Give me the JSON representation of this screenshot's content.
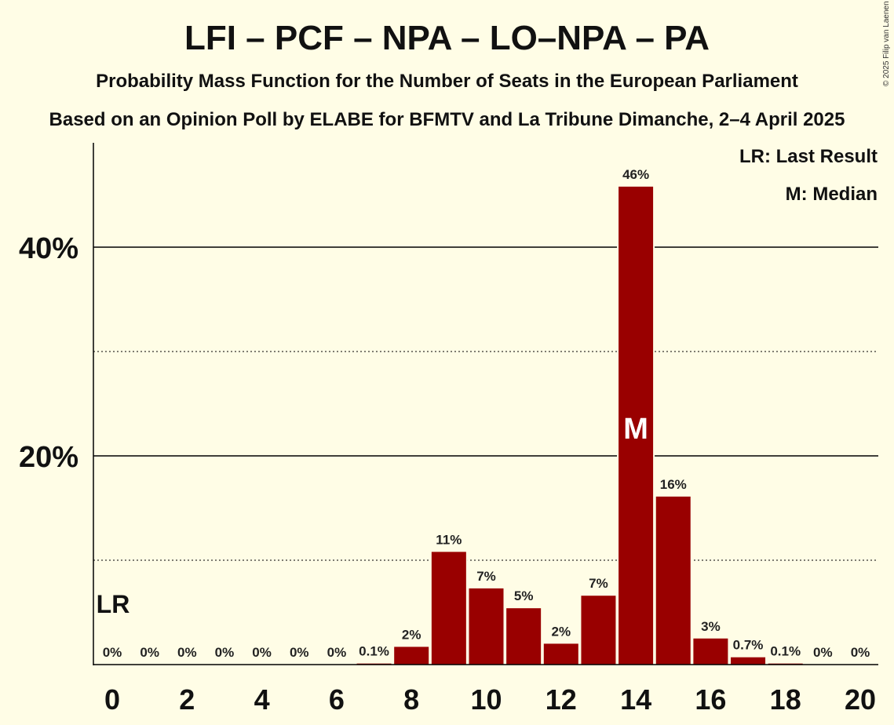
{
  "title": "LFI – PCF – NPA – LO–NPA – PA",
  "subtitle": "Probability Mass Function for the Number of Seats in the European Parliament",
  "subtitle2": "Based on an Opinion Poll by ELABE for BFMTV and La Tribune Dimanche, 2–4 April 2025",
  "copyright": "© 2025 Filip van Laenen",
  "legend": {
    "last_result": "LR: Last Result",
    "median": "M: Median"
  },
  "chart_data": {
    "type": "bar",
    "categories": [
      0,
      1,
      2,
      3,
      4,
      5,
      6,
      7,
      8,
      9,
      10,
      11,
      12,
      13,
      14,
      15,
      16,
      17,
      18,
      19,
      20
    ],
    "values": [
      0,
      0,
      0,
      0,
      0,
      0,
      0,
      0.1,
      1.7,
      10.8,
      7.3,
      5.4,
      2.0,
      6.6,
      45.8,
      16.1,
      2.5,
      0.7,
      0.1,
      0,
      0
    ],
    "data_labels": [
      "0%",
      "0%",
      "0%",
      "0%",
      "0%",
      "0%",
      "0%",
      "0.1%",
      "2%",
      "11%",
      "7%",
      "5%",
      "2%",
      "7%",
      "46%",
      "16%",
      "3%",
      "0.7%",
      "0.1%",
      "0%",
      "0%"
    ],
    "x_tick_labels": [
      "0",
      "2",
      "4",
      "6",
      "8",
      "10",
      "12",
      "14",
      "16",
      "18",
      "20"
    ],
    "y_tick_labels": [
      "20%",
      "40%"
    ],
    "y_major_ticks": [
      20,
      40
    ],
    "y_minor_ticks": [
      10,
      30
    ],
    "ylim": [
      0,
      50
    ],
    "last_result_seat": 0,
    "last_result_label": "LR",
    "median_seat": 14,
    "median_label": "M",
    "bar_color": "#990000",
    "grid": true
  }
}
